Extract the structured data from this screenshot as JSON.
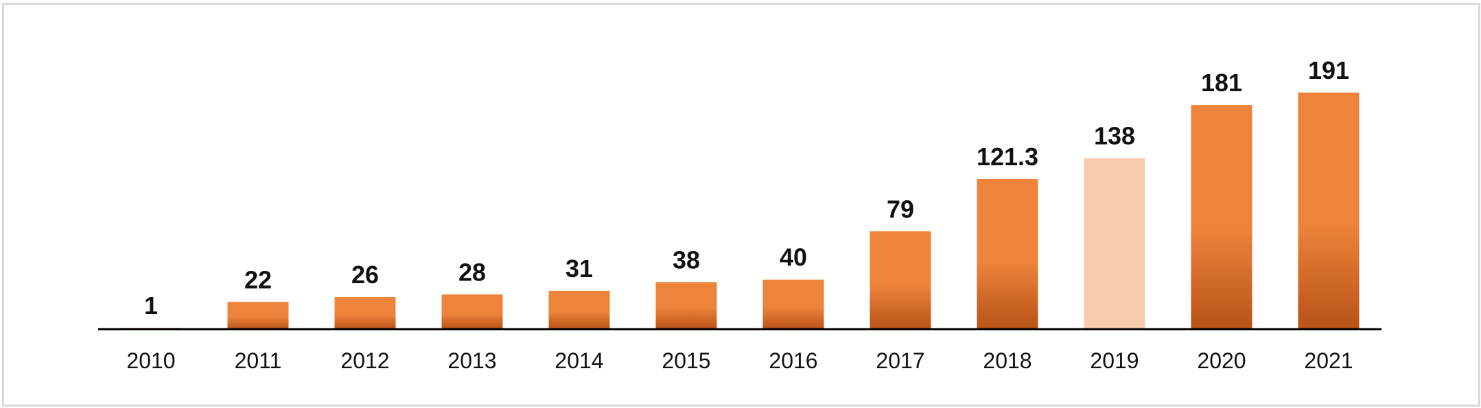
{
  "chart_data": {
    "type": "bar",
    "categories": [
      "2010",
      "2011",
      "2012",
      "2013",
      "2014",
      "2015",
      "2016",
      "2017",
      "2018",
      "2019",
      "2020",
      "2021"
    ],
    "values": [
      1,
      22,
      26,
      28,
      31,
      38,
      40,
      79,
      121.3,
      138,
      181,
      191
    ],
    "value_labels": [
      "1",
      "22",
      "26",
      "28",
      "31",
      "38",
      "40",
      "79",
      "121.3",
      "138",
      "181",
      "191"
    ],
    "title": "",
    "xlabel": "",
    "ylabel": "",
    "ylim": [
      0,
      191
    ],
    "grid": false,
    "legend": "none",
    "colors": {
      "bar_top": "#ee843c",
      "bar_bottom": "#b85216",
      "highlight_bar": "#f8cbad",
      "axis": "#000000",
      "frame": "#d9d9d9"
    },
    "highlight_category": "2019"
  }
}
